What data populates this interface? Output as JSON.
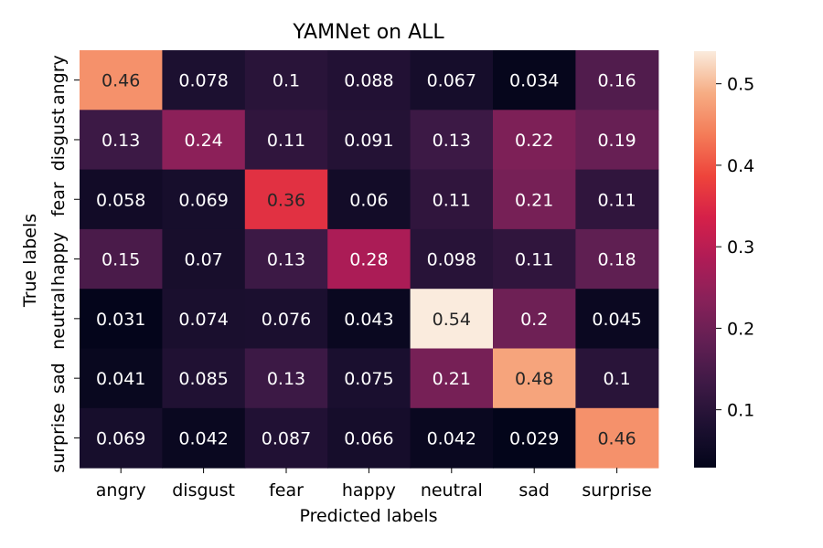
{
  "chart_data": {
    "type": "heatmap",
    "title": "YAMNet on ALL",
    "xlabel": "Predicted labels",
    "ylabel": "True labels",
    "x_categories": [
      "angry",
      "disgust",
      "fear",
      "happy",
      "neutral",
      "sad",
      "surprise"
    ],
    "y_categories": [
      "angry",
      "disgust",
      "fear",
      "happy",
      "neutral",
      "sad",
      "surprise"
    ],
    "values": [
      [
        0.46,
        0.078,
        0.1,
        0.088,
        0.067,
        0.034,
        0.16
      ],
      [
        0.13,
        0.24,
        0.11,
        0.091,
        0.13,
        0.22,
        0.19
      ],
      [
        0.058,
        0.069,
        0.36,
        0.06,
        0.11,
        0.21,
        0.11
      ],
      [
        0.15,
        0.07,
        0.13,
        0.28,
        0.098,
        0.11,
        0.18
      ],
      [
        0.031,
        0.074,
        0.076,
        0.043,
        0.54,
        0.2,
        0.045
      ],
      [
        0.041,
        0.085,
        0.13,
        0.075,
        0.21,
        0.48,
        0.1
      ],
      [
        0.069,
        0.042,
        0.087,
        0.066,
        0.042,
        0.029,
        0.46
      ]
    ],
    "value_labels": [
      [
        "0.46",
        "0.078",
        "0.1",
        "0.088",
        "0.067",
        "0.034",
        "0.16"
      ],
      [
        "0.13",
        "0.24",
        "0.11",
        "0.091",
        "0.13",
        "0.22",
        "0.19"
      ],
      [
        "0.058",
        "0.069",
        "0.36",
        "0.06",
        "0.11",
        "0.21",
        "0.11"
      ],
      [
        "0.15",
        "0.07",
        "0.13",
        "0.28",
        "0.098",
        "0.11",
        "0.18"
      ],
      [
        "0.031",
        "0.074",
        "0.076",
        "0.043",
        "0.54",
        "0.2",
        "0.045"
      ],
      [
        "0.041",
        "0.085",
        "0.13",
        "0.075",
        "0.21",
        "0.48",
        "0.1"
      ],
      [
        "0.069",
        "0.042",
        "0.087",
        "0.066",
        "0.042",
        "0.029",
        "0.46"
      ]
    ],
    "colorbar": {
      "colormap": "rocket",
      "vmin": 0.029,
      "vmax": 0.54,
      "ticks": [
        0.1,
        0.2,
        0.3,
        0.4,
        0.5
      ],
      "tick_labels": [
        "0.1",
        "0.2",
        "0.3",
        "0.4",
        "0.5"
      ]
    },
    "colors": {
      "text_on_dark": "#ffffff",
      "text_on_light": "#262626",
      "axis": "#000000"
    },
    "grid": false
  }
}
